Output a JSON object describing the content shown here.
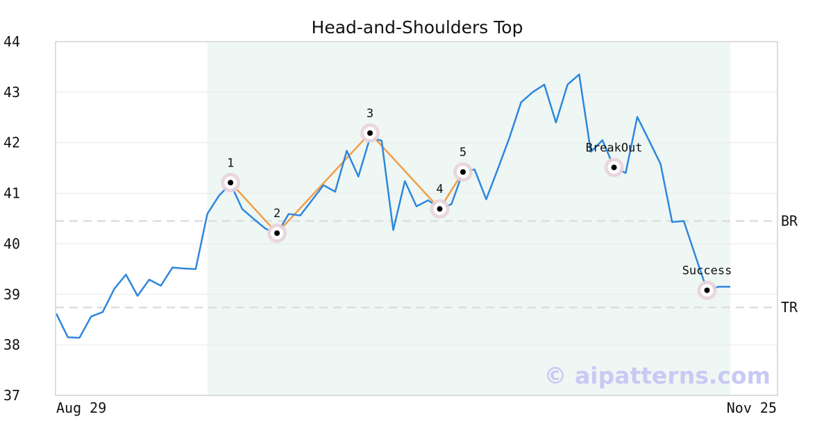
{
  "chart_data": {
    "type": "line",
    "title": "Head-and-Shoulders Top",
    "watermark": "© aipatterns.com",
    "xlabel": "",
    "ylabel": "",
    "ylim": [
      37,
      44
    ],
    "y_ticks": [
      37,
      38,
      39,
      40,
      41,
      42,
      43,
      44
    ],
    "x_tick_labels": [
      "Aug 29",
      "Nov 25"
    ],
    "x_index_range": [
      0,
      58
    ],
    "grid": true,
    "colors": {
      "price": "#2e86de",
      "pattern": "#f39c45",
      "shade": "#eef7f3",
      "level": "#dddddd",
      "marker_halo": "#e8d3dc",
      "marker": "#000000"
    },
    "pattern_region": [
      13,
      58
    ],
    "series": [
      {
        "values": [
          38.62,
          38.15,
          38.14,
          38.56,
          38.65,
          39.11,
          39.39,
          38.97,
          39.29,
          39.17,
          39.53,
          39.51,
          39.5,
          40.59,
          40.95,
          41.19,
          40.69,
          40.49,
          40.3,
          40.2,
          40.59,
          40.56,
          40.86,
          41.16,
          41.03,
          41.84,
          41.33,
          42.1,
          42.04,
          40.27,
          41.24,
          40.74,
          40.86,
          40.7,
          40.78,
          41.42,
          41.47,
          40.88,
          41.48,
          42.1,
          42.8,
          43.0,
          43.15,
          42.4,
          43.15,
          43.35,
          41.82,
          42.05,
          41.51,
          41.4,
          42.51,
          42.05,
          41.58,
          40.43,
          40.45,
          39.76,
          39.08,
          39.15,
          39.15
        ]
      }
    ],
    "pattern_points": [
      {
        "label": "1",
        "x": 15,
        "y": 41.21
      },
      {
        "label": "2",
        "x": 19,
        "y": 40.21
      },
      {
        "label": "3",
        "x": 27,
        "y": 42.19
      },
      {
        "label": "4",
        "x": 33,
        "y": 40.69
      },
      {
        "label": "5",
        "x": 35,
        "y": 41.42
      }
    ],
    "event_points": [
      {
        "label": "BreakOut",
        "x": 48,
        "y": 41.51
      },
      {
        "label": "Success",
        "x": 56,
        "y": 39.08
      }
    ],
    "levels": [
      {
        "label": "BR",
        "y": 40.45
      },
      {
        "label": "TR",
        "y": 38.74
      }
    ]
  }
}
